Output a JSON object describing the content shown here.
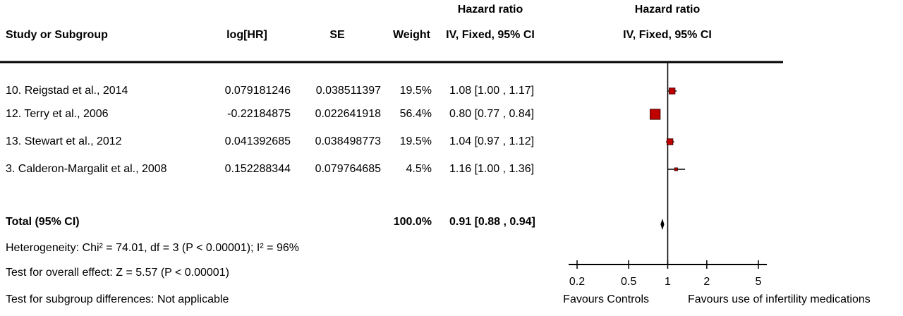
{
  "chart_data": {
    "type": "forest",
    "headers": {
      "hr_title": "Hazard ratio",
      "plot_title": "Hazard ratio",
      "study": "Study or Subgroup",
      "log_hr": "log[HR]",
      "se": "SE",
      "weight": "Weight",
      "hr_method": "IV, Fixed, 95% CI",
      "plot_method": "IV, Fixed, 95% CI"
    },
    "studies": [
      "10. Reigstad et al., 2014",
      "12. Terry et al., 2006",
      "13. Stewart et al., 2012",
      "3. Calderon-Margalit et al., 2008"
    ],
    "log_hr": [
      0.079181246,
      -0.22184875,
      0.041392685,
      0.152288344
    ],
    "se": [
      0.038511397,
      0.022641918,
      0.038498773,
      0.079764685
    ],
    "weight": [
      19.5,
      56.4,
      19.5,
      4.5
    ],
    "weight_labels": [
      "19.5%",
      "56.4%",
      "19.5%",
      "4.5%"
    ],
    "hr": [
      1.08,
      0.8,
      1.04,
      1.16
    ],
    "ci_lower": [
      1.0,
      0.77,
      0.97,
      1.0
    ],
    "ci_upper": [
      1.17,
      0.84,
      1.12,
      1.36
    ],
    "ci_labels": [
      "1.08 [1.00 , 1.17]",
      "0.80 [0.77 , 0.84]",
      "1.04 [0.97 , 1.12]",
      "1.16 [1.00 , 1.36]"
    ],
    "total": {
      "label": "Total (95% CI)",
      "weight": 100.0,
      "weight_label": "100.0%",
      "hr": 0.91,
      "ci_lower": 0.88,
      "ci_upper": 0.94,
      "ci_label": "0.91 [0.88 , 0.94]"
    },
    "heterogeneity": "Heterogeneity: Chi² = 74.01, df = 3 (P < 0.00001); I² = 96%",
    "overall_effect": "Test for overall effect: Z = 5.57 (P < 0.00001)",
    "subgroup_differences": "Test for subgroup differences: Not applicable",
    "x_log": true,
    "xlim": [
      0.2,
      5
    ],
    "xticks": [
      0.2,
      0.5,
      1,
      2,
      5
    ],
    "favours_left": "Favours Controls",
    "favours_right": "Favours use of infertility medications",
    "color": "#c00000"
  }
}
